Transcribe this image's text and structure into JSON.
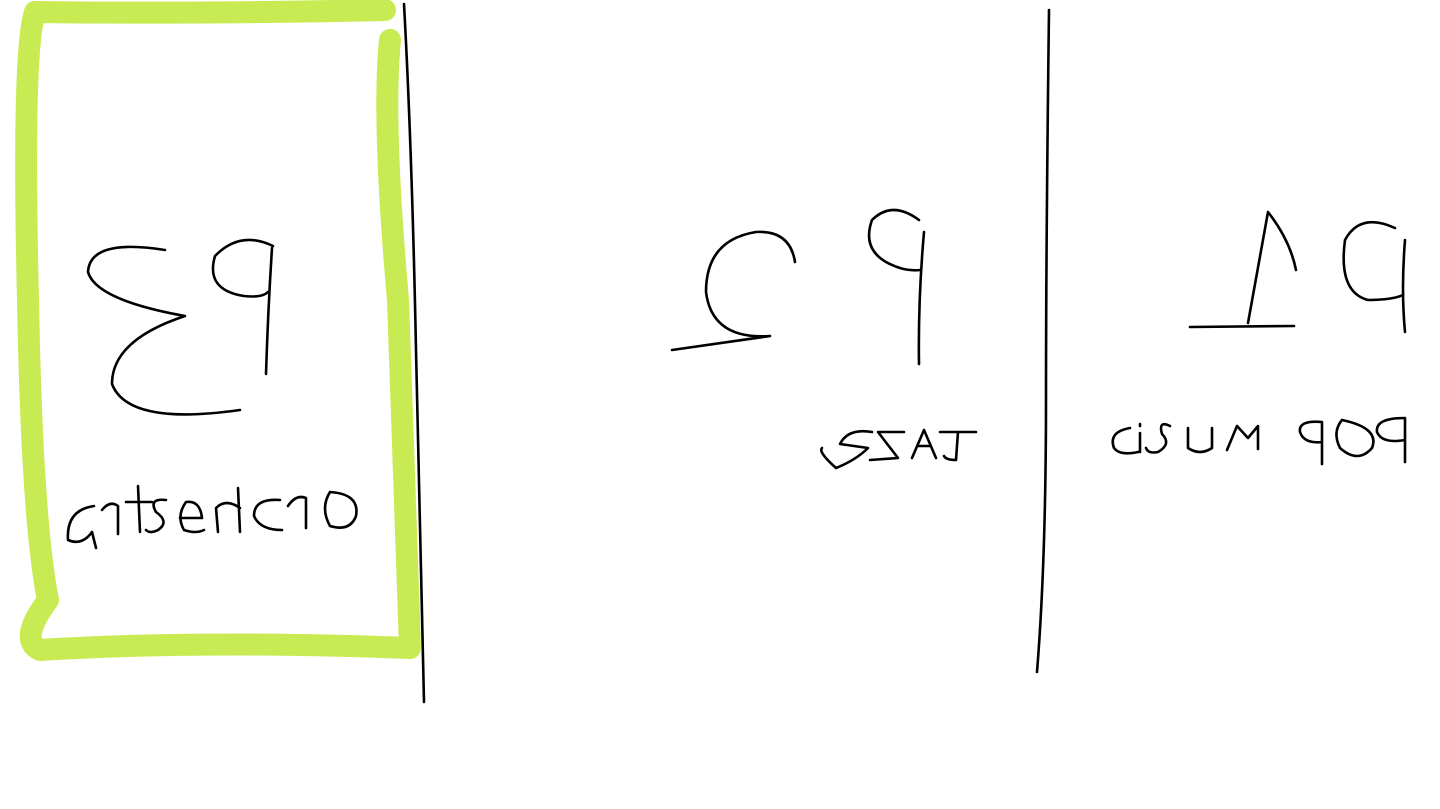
{
  "drawing": {
    "highlight_color": "#c8ea52",
    "ink_color": "#000000",
    "background": "#ffffff",
    "mirrored": true
  },
  "panels": [
    {
      "id": "p1",
      "title": "P1",
      "label": "POP MUSIC",
      "selected": false
    },
    {
      "id": "p2",
      "title": "P2",
      "label": "JAZZ",
      "selected": false
    },
    {
      "id": "p3",
      "title": "P3",
      "label": "orchestra",
      "selected": true
    }
  ]
}
